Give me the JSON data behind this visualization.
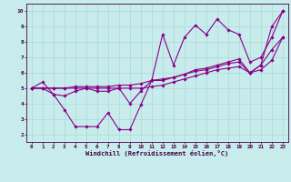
{
  "xlabel": "Windchill (Refroidissement éolien,°C)",
  "xlim": [
    -0.5,
    23.5
  ],
  "ylim": [
    1.5,
    10.5
  ],
  "xticks": [
    0,
    1,
    2,
    3,
    4,
    5,
    6,
    7,
    8,
    9,
    10,
    11,
    12,
    13,
    14,
    15,
    16,
    17,
    18,
    19,
    20,
    21,
    22,
    23
  ],
  "yticks": [
    2,
    3,
    4,
    5,
    6,
    7,
    8,
    9,
    10
  ],
  "bg_color": "#c8ecec",
  "line_color": "#880088",
  "grid_color": "#aad8d8",
  "lines_y": [
    [
      5.0,
      5.4,
      4.6,
      3.6,
      2.5,
      2.5,
      2.5,
      3.4,
      2.3,
      2.3,
      3.9,
      5.5,
      8.5,
      6.5,
      8.3,
      9.1,
      8.5,
      9.5,
      8.8,
      8.5,
      6.7,
      7.0,
      8.3,
      10.0
    ],
    [
      5.0,
      5.0,
      4.6,
      4.5,
      4.8,
      5.0,
      4.8,
      4.8,
      5.0,
      4.0,
      4.8,
      5.5,
      5.5,
      5.7,
      5.9,
      6.2,
      6.3,
      6.5,
      6.7,
      6.9,
      6.0,
      6.5,
      9.0,
      10.0
    ],
    [
      5.0,
      5.0,
      5.0,
      5.0,
      5.1,
      5.1,
      5.1,
      5.1,
      5.2,
      5.2,
      5.3,
      5.5,
      5.6,
      5.7,
      5.9,
      6.1,
      6.2,
      6.4,
      6.6,
      6.7,
      6.0,
      6.5,
      7.5,
      8.3
    ],
    [
      5.0,
      5.0,
      5.0,
      5.0,
      5.0,
      5.0,
      5.0,
      5.0,
      5.0,
      5.0,
      5.0,
      5.1,
      5.2,
      5.4,
      5.6,
      5.8,
      6.0,
      6.2,
      6.3,
      6.4,
      6.0,
      6.2,
      6.8,
      8.3
    ]
  ]
}
